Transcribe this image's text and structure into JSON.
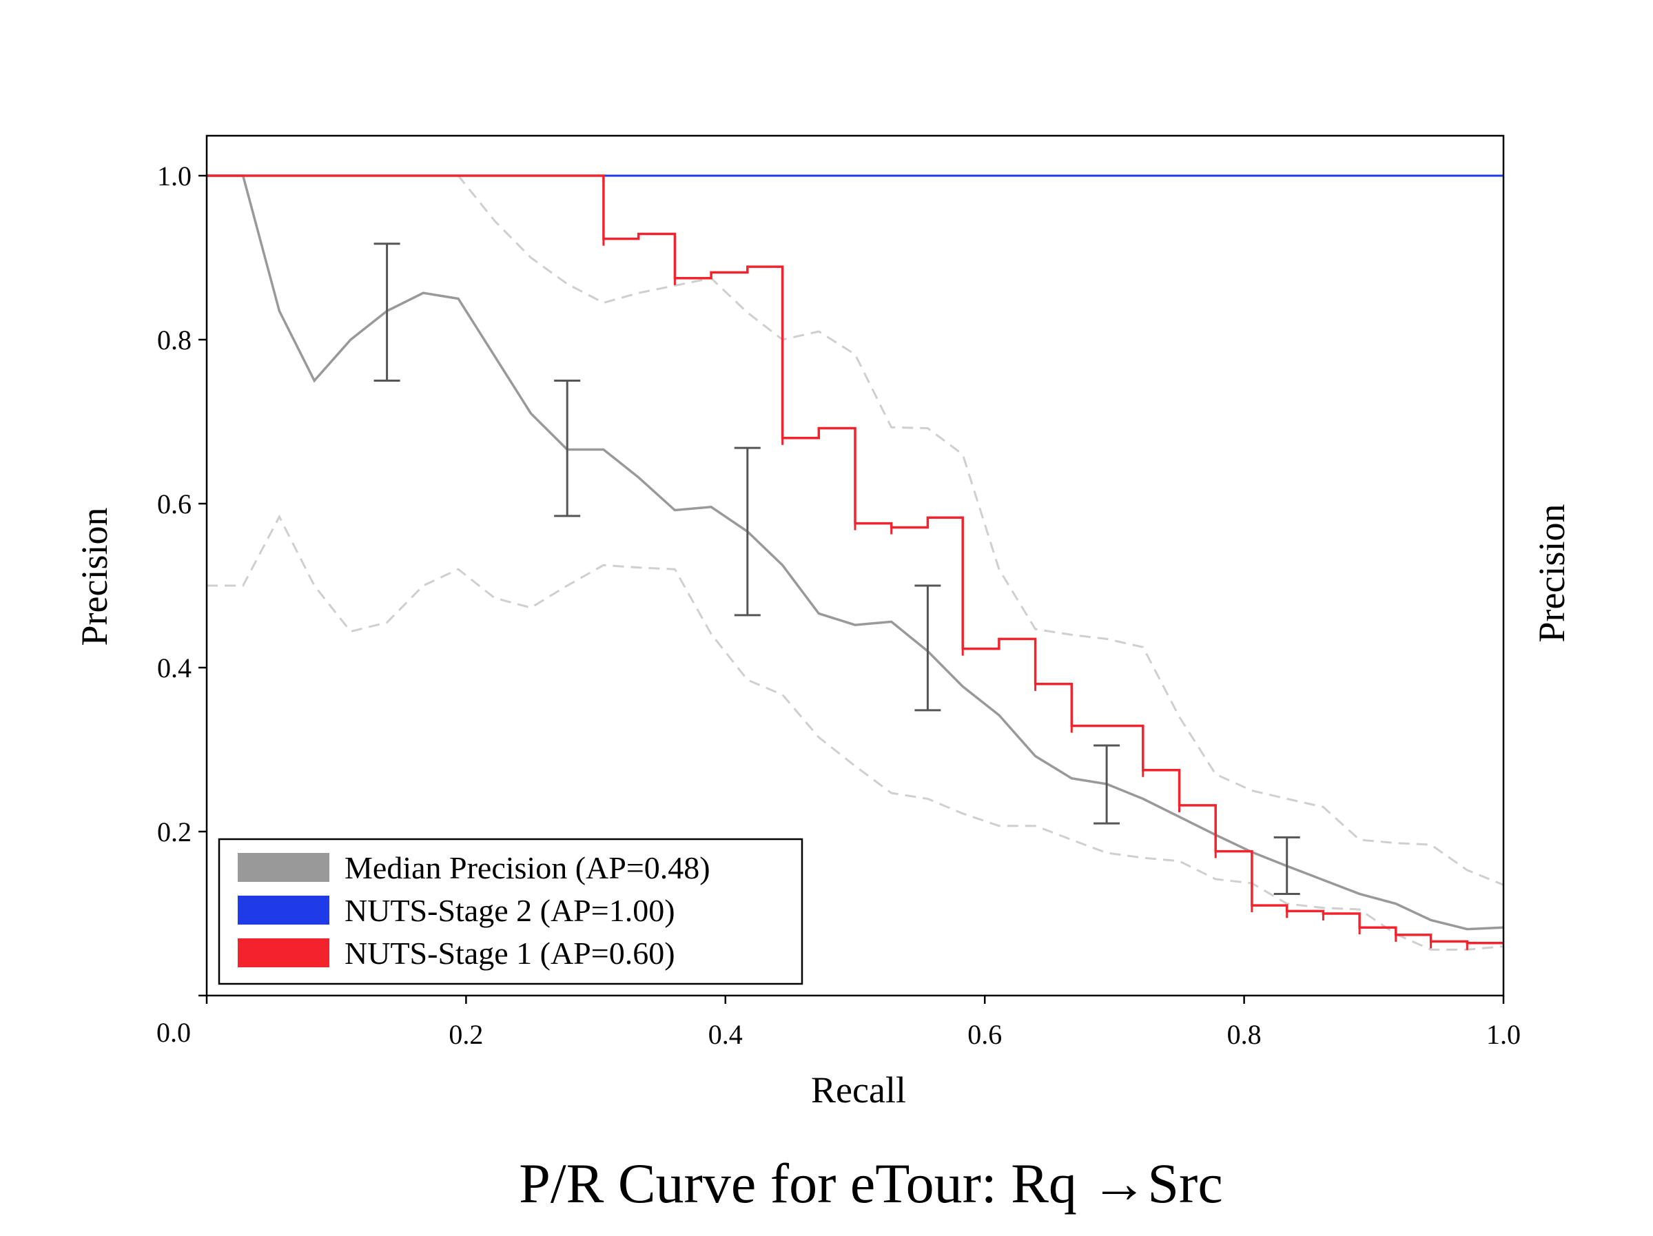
{
  "chart_data": {
    "type": "line",
    "title": "P/R Curve for eTour: Rq →Src",
    "xlabel": "Recall",
    "ylabel": "Precision",
    "ylabel_right": "Precision",
    "xlim": [
      0.0,
      1.0
    ],
    "ylim": [
      0.0,
      1.05
    ],
    "x_ticks": [
      "0.2",
      "0.4",
      "0.6",
      "0.8",
      "1.0"
    ],
    "y_ticks": [
      "0.2",
      "0.4",
      "0.6",
      "0.8",
      "1.0"
    ],
    "origin_label": "0.0",
    "grid": false,
    "legend_position": "lower-left",
    "legend": [
      {
        "label": "Median Precision (AP=0.48)",
        "color": "#999999"
      },
      {
        "label": "NUTS-Stage 2 (AP=1.00)",
        "color": "#1f3be8"
      },
      {
        "label": "NUTS-Stage 1 (AP=0.60)",
        "color": "#f2232c"
      }
    ],
    "series": [
      {
        "name": "Median Precision (AP=0.48)",
        "color": "#999999",
        "style": "solid",
        "points": [
          [
            0.0,
            1.0
          ],
          [
            0.028,
            1.0
          ],
          [
            0.056,
            0.835
          ],
          [
            0.083,
            0.75
          ],
          [
            0.111,
            0.8
          ],
          [
            0.139,
            0.835
          ],
          [
            0.167,
            0.857
          ],
          [
            0.194,
            0.85
          ],
          [
            0.222,
            0.78
          ],
          [
            0.25,
            0.71
          ],
          [
            0.278,
            0.666
          ],
          [
            0.306,
            0.666
          ],
          [
            0.333,
            0.632
          ],
          [
            0.361,
            0.592
          ],
          [
            0.389,
            0.596
          ],
          [
            0.417,
            0.566
          ],
          [
            0.444,
            0.525
          ],
          [
            0.472,
            0.466
          ],
          [
            0.5,
            0.452
          ],
          [
            0.528,
            0.456
          ],
          [
            0.556,
            0.42
          ],
          [
            0.583,
            0.377
          ],
          [
            0.611,
            0.342
          ],
          [
            0.639,
            0.292
          ],
          [
            0.667,
            0.265
          ],
          [
            0.694,
            0.258
          ],
          [
            0.722,
            0.24
          ],
          [
            0.75,
            0.218
          ],
          [
            0.778,
            0.196
          ],
          [
            0.806,
            0.175
          ],
          [
            0.833,
            0.158
          ],
          [
            0.861,
            0.141
          ],
          [
            0.889,
            0.124
          ],
          [
            0.917,
            0.112
          ],
          [
            0.944,
            0.092
          ],
          [
            0.972,
            0.081
          ],
          [
            1.0,
            0.083
          ]
        ]
      },
      {
        "name": "Upper band",
        "color": "#cfcfcf",
        "style": "dashed",
        "points": [
          [
            0.0,
            1.0
          ],
          [
            0.194,
            1.0
          ],
          [
            0.222,
            0.945
          ],
          [
            0.25,
            0.9
          ],
          [
            0.278,
            0.868
          ],
          [
            0.306,
            0.845
          ],
          [
            0.333,
            0.857
          ],
          [
            0.361,
            0.866
          ],
          [
            0.389,
            0.875
          ],
          [
            0.417,
            0.833
          ],
          [
            0.444,
            0.8
          ],
          [
            0.472,
            0.81
          ],
          [
            0.5,
            0.782
          ],
          [
            0.528,
            0.693
          ],
          [
            0.556,
            0.692
          ],
          [
            0.583,
            0.66
          ],
          [
            0.611,
            0.52
          ],
          [
            0.639,
            0.447
          ],
          [
            0.667,
            0.44
          ],
          [
            0.694,
            0.435
          ],
          [
            0.722,
            0.425
          ],
          [
            0.75,
            0.34
          ],
          [
            0.778,
            0.27
          ],
          [
            0.806,
            0.25
          ],
          [
            0.833,
            0.24
          ],
          [
            0.861,
            0.23
          ],
          [
            0.889,
            0.19
          ],
          [
            0.917,
            0.186
          ],
          [
            0.944,
            0.184
          ],
          [
            0.972,
            0.153
          ],
          [
            1.0,
            0.135
          ]
        ]
      },
      {
        "name": "Lower band",
        "color": "#cfcfcf",
        "style": "dashed",
        "points": [
          [
            0.0,
            0.5
          ],
          [
            0.028,
            0.5
          ],
          [
            0.056,
            0.584
          ],
          [
            0.083,
            0.5
          ],
          [
            0.111,
            0.444
          ],
          [
            0.139,
            0.455
          ],
          [
            0.167,
            0.5
          ],
          [
            0.194,
            0.52
          ],
          [
            0.222,
            0.485
          ],
          [
            0.25,
            0.473
          ],
          [
            0.278,
            0.5
          ],
          [
            0.306,
            0.525
          ],
          [
            0.333,
            0.522
          ],
          [
            0.361,
            0.52
          ],
          [
            0.389,
            0.441
          ],
          [
            0.417,
            0.385
          ],
          [
            0.444,
            0.367
          ],
          [
            0.472,
            0.315
          ],
          [
            0.5,
            0.28
          ],
          [
            0.528,
            0.247
          ],
          [
            0.556,
            0.24
          ],
          [
            0.583,
            0.222
          ],
          [
            0.611,
            0.207
          ],
          [
            0.639,
            0.207
          ],
          [
            0.667,
            0.19
          ],
          [
            0.694,
            0.174
          ],
          [
            0.722,
            0.168
          ],
          [
            0.75,
            0.164
          ],
          [
            0.778,
            0.142
          ],
          [
            0.806,
            0.137
          ],
          [
            0.833,
            0.112
          ],
          [
            0.861,
            0.107
          ],
          [
            0.889,
            0.105
          ],
          [
            0.917,
            0.075
          ],
          [
            0.944,
            0.056
          ],
          [
            0.972,
            0.056
          ],
          [
            1.0,
            0.06
          ]
        ]
      },
      {
        "name": "NUTS-Stage 2 (AP=1.00)",
        "color": "#1f3be8",
        "style": "solid",
        "points": [
          [
            0.0,
            1.0
          ],
          [
            1.0,
            1.0
          ]
        ]
      },
      {
        "name": "NUTS-Stage 1 (AP=0.60)",
        "color": "#f2232c",
        "style": "step",
        "points": [
          [
            0.0,
            1.0
          ],
          [
            0.306,
            1.0
          ],
          [
            0.306,
            0.923
          ],
          [
            0.333,
            0.923
          ],
          [
            0.333,
            0.929
          ],
          [
            0.361,
            0.929
          ],
          [
            0.361,
            0.875
          ],
          [
            0.389,
            0.875
          ],
          [
            0.389,
            0.882
          ],
          [
            0.417,
            0.882
          ],
          [
            0.417,
            0.889
          ],
          [
            0.444,
            0.889
          ],
          [
            0.444,
            0.68
          ],
          [
            0.472,
            0.68
          ],
          [
            0.472,
            0.692
          ],
          [
            0.5,
            0.692
          ],
          [
            0.5,
            0.576
          ],
          [
            0.528,
            0.576
          ],
          [
            0.528,
            0.571
          ],
          [
            0.556,
            0.571
          ],
          [
            0.556,
            0.583
          ],
          [
            0.583,
            0.583
          ],
          [
            0.583,
            0.423
          ],
          [
            0.611,
            0.423
          ],
          [
            0.611,
            0.435
          ],
          [
            0.639,
            0.435
          ],
          [
            0.639,
            0.38
          ],
          [
            0.667,
            0.38
          ],
          [
            0.667,
            0.329
          ],
          [
            0.694,
            0.329
          ],
          [
            0.694,
            0.329
          ],
          [
            0.722,
            0.329
          ],
          [
            0.722,
            0.275
          ],
          [
            0.75,
            0.275
          ],
          [
            0.75,
            0.232
          ],
          [
            0.778,
            0.232
          ],
          [
            0.778,
            0.176
          ],
          [
            0.806,
            0.176
          ],
          [
            0.806,
            0.11
          ],
          [
            0.833,
            0.11
          ],
          [
            0.833,
            0.103
          ],
          [
            0.861,
            0.103
          ],
          [
            0.861,
            0.1
          ],
          [
            0.889,
            0.1
          ],
          [
            0.889,
            0.083
          ],
          [
            0.917,
            0.083
          ],
          [
            0.917,
            0.074
          ],
          [
            0.944,
            0.074
          ],
          [
            0.944,
            0.066
          ],
          [
            0.972,
            0.066
          ],
          [
            0.972,
            0.064
          ],
          [
            1.0,
            0.064
          ]
        ]
      }
    ],
    "error_bars": [
      {
        "x": 0.139,
        "low": 0.75,
        "high": 0.917
      },
      {
        "x": 0.278,
        "low": 0.585,
        "high": 0.75
      },
      {
        "x": 0.417,
        "low": 0.464,
        "high": 0.668
      },
      {
        "x": 0.556,
        "low": 0.348,
        "high": 0.5
      },
      {
        "x": 0.694,
        "low": 0.21,
        "high": 0.305
      },
      {
        "x": 0.833,
        "low": 0.124,
        "high": 0.193
      }
    ]
  }
}
